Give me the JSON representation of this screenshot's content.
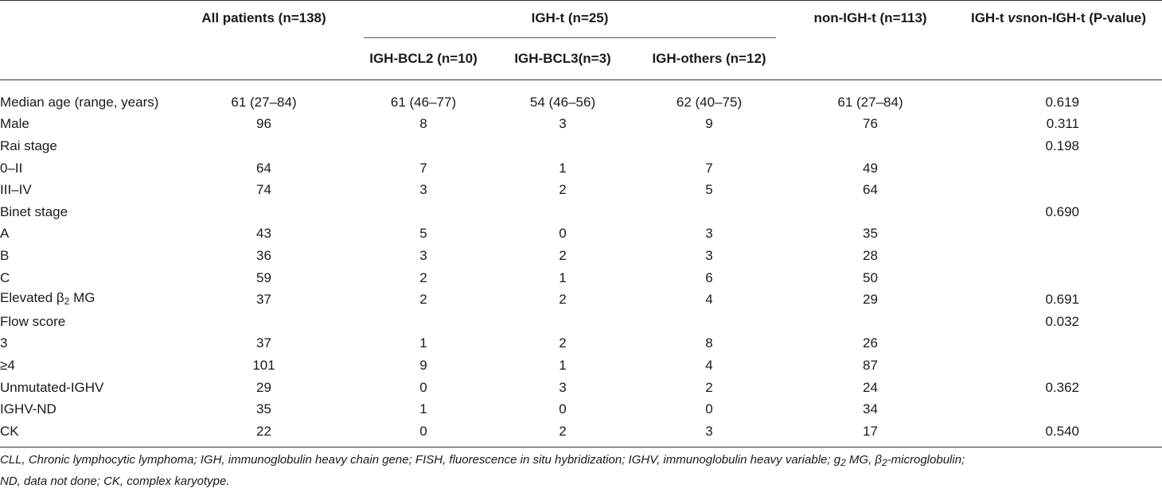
{
  "table": {
    "headers": {
      "all_patients": "All patients (n=138)",
      "igh_t_group": "IGH-t (n=25)",
      "non_igh_t": "non-IGH-t (n=113)",
      "p_value_prefix": "IGH-t ",
      "p_value_vs": "vs",
      "p_value_suffix": "non-IGH-t (P-value)",
      "igh_bcl2": "IGH-BCL2 (n=10)",
      "igh_bcl3": "IGH-BCL3(n=3)",
      "igh_others": "IGH-others (n=12)"
    },
    "rows": [
      {
        "label": "Median age (range, years)",
        "all": "61 (27–84)",
        "bcl2": "61 (46–77)",
        "bcl3": "54 (46–56)",
        "others": "62 (40–75)",
        "non": "61 (27–84)",
        "p": "0.619"
      },
      {
        "label": "Male",
        "all": "96",
        "bcl2": "8",
        "bcl3": "3",
        "others": "9",
        "non": "76",
        "p": "0.311"
      },
      {
        "label": "Rai stage",
        "all": "",
        "bcl2": "",
        "bcl3": "",
        "others": "",
        "non": "",
        "p": "0.198"
      },
      {
        "label": "0–II",
        "all": "64",
        "bcl2": "7",
        "bcl3": "1",
        "others": "7",
        "non": "49",
        "p": ""
      },
      {
        "label": "III–IV",
        "all": "74",
        "bcl2": "3",
        "bcl3": "2",
        "others": "5",
        "non": "64",
        "p": ""
      },
      {
        "label": "Binet stage",
        "all": "",
        "bcl2": "",
        "bcl3": "",
        "others": "",
        "non": "",
        "p": "0.690"
      },
      {
        "label": "A",
        "all": "43",
        "bcl2": "5",
        "bcl3": "0",
        "others": "3",
        "non": "35",
        "p": ""
      },
      {
        "label": "B",
        "all": "36",
        "bcl2": "3",
        "bcl3": "2",
        "others": "3",
        "non": "28",
        "p": ""
      },
      {
        "label": "C",
        "all": "59",
        "bcl2": "2",
        "bcl3": "1",
        "others": "6",
        "non": "50",
        "p": ""
      },
      {
        "label_prefix": "Elevated β",
        "label_sub": "2",
        "label_suffix": " MG",
        "all": "37",
        "bcl2": "2",
        "bcl3": "2",
        "others": "4",
        "non": "29",
        "p": "0.691"
      },
      {
        "label": "Flow score",
        "all": "",
        "bcl2": "",
        "bcl3": "",
        "others": "",
        "non": "",
        "p": "0.032"
      },
      {
        "label": "3",
        "all": "37",
        "bcl2": "1",
        "bcl3": "2",
        "others": "8",
        "non": "26",
        "p": ""
      },
      {
        "label": "≥4",
        "all": "101",
        "bcl2": "9",
        "bcl3": "1",
        "others": "4",
        "non": "87",
        "p": ""
      },
      {
        "label": "Unmutated-IGHV",
        "all": "29",
        "bcl2": "0",
        "bcl3": "3",
        "others": "2",
        "non": "24",
        "p": "0.362"
      },
      {
        "label": "IGHV-ND",
        "all": "35",
        "bcl2": "1",
        "bcl3": "0",
        "others": "0",
        "non": "34",
        "p": ""
      },
      {
        "label": "CK",
        "all": "22",
        "bcl2": "0",
        "bcl3": "2",
        "others": "3",
        "non": "17",
        "p": "0.540"
      }
    ]
  },
  "footnote": {
    "line1": "CLL, Chronic lymphocytic lymphoma; IGH, immunoglobulin heavy chain gene; FISH, fluorescence in situ hybridization; IGHV, immunoglobulin heavy variable; g",
    "line1_sub1": "2",
    "line1_mid": " MG, β",
    "line1_sub2": "2",
    "line1_end": "-microglobulin;",
    "line2": "ND, data not done; CK, complex karyotype."
  }
}
